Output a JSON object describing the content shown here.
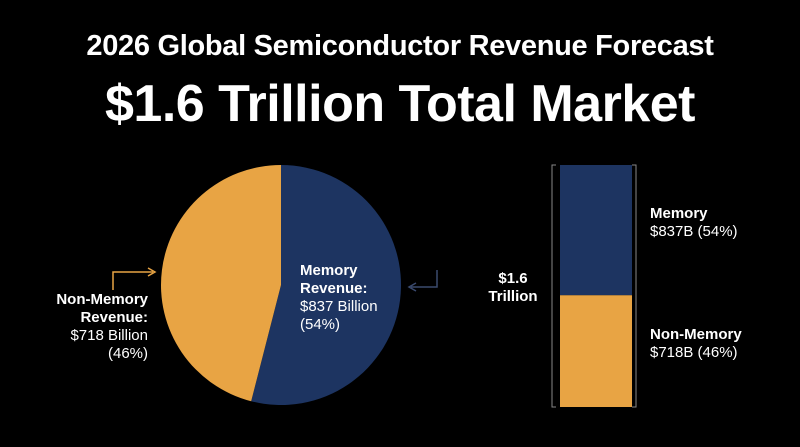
{
  "title": "2026 Global Semiconductor Revenue Forecast",
  "subtitle": "$1.6 Trillion Total Market",
  "chart_data": [
    {
      "type": "pie",
      "categories": [
        "Memory Revenue:",
        "Non-Memory Revenue:"
      ],
      "values": [
        54,
        46
      ],
      "value_labels": [
        "(54%)",
        "(46%)"
      ],
      "amounts": [
        837,
        718
      ],
      "amount_labels": [
        "$837 Billion",
        "$718 Billion"
      ],
      "colors": [
        "#1d3461",
        "#e8a444"
      ]
    },
    {
      "type": "stacked-bar",
      "categories": [
        "Memory",
        "Non-Memory"
      ],
      "values": [
        837,
        718
      ],
      "value_labels": [
        "$837B (54%)",
        "$718B (46%)"
      ],
      "colors": [
        "#1d3461",
        "#e8a444"
      ],
      "total": 1.6,
      "total_label": "$1.6 Trillion"
    }
  ]
}
